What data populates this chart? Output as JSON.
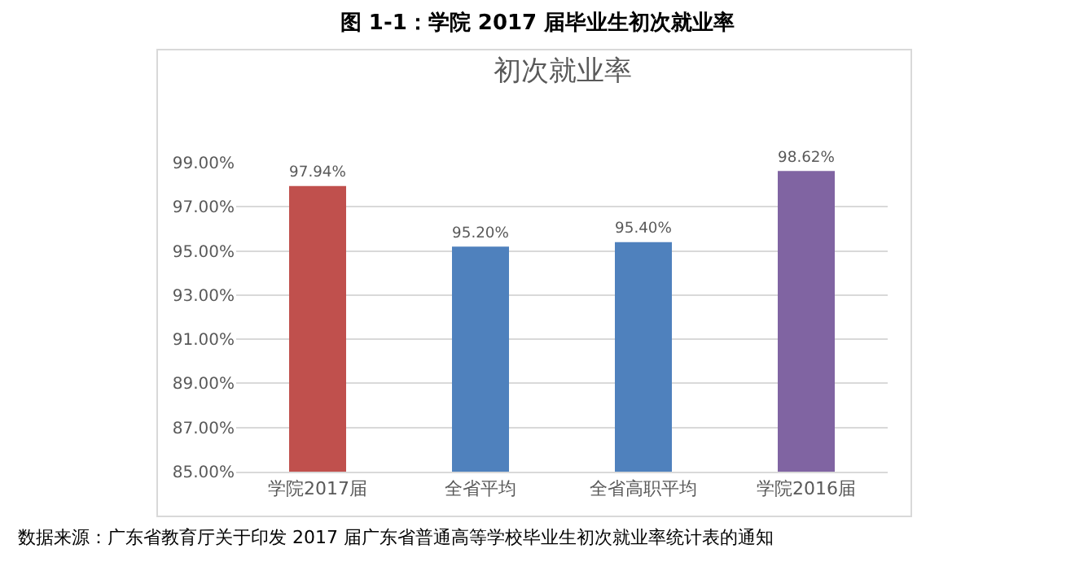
{
  "chart_data": {
    "type": "bar",
    "title": "图 1-1：学院 2017 届毕业生初次就业率",
    "subtitle": "初次就业率",
    "categories": [
      "学院2017届",
      "全省平均",
      "全省高职平均",
      "学院2016届"
    ],
    "values": [
      97.94,
      95.2,
      95.4,
      98.62
    ],
    "colors": [
      "#c0504d",
      "#4f81bd",
      "#4f81bd",
      "#8064a2"
    ],
    "value_labels": [
      "97.94%",
      "95.20%",
      "95.40%",
      "98.62%"
    ],
    "ylim": [
      85,
      99
    ],
    "yticks": [
      {
        "value": 85,
        "label": "85.00%"
      },
      {
        "value": 87,
        "label": "87.00%"
      },
      {
        "value": 89,
        "label": "89.00%"
      },
      {
        "value": 91,
        "label": "91.00%"
      },
      {
        "value": 93,
        "label": "93.00%"
      },
      {
        "value": 95,
        "label": "95.00%"
      },
      {
        "value": 97,
        "label": "97.00%"
      },
      {
        "value": 99,
        "label": "99.00%"
      }
    ],
    "grid": "y",
    "annotations": [
      "数据来源：广东省教育厅关于印发 2017 届广东省普通高等学校毕业生初次就业率统计表的通知"
    ]
  }
}
